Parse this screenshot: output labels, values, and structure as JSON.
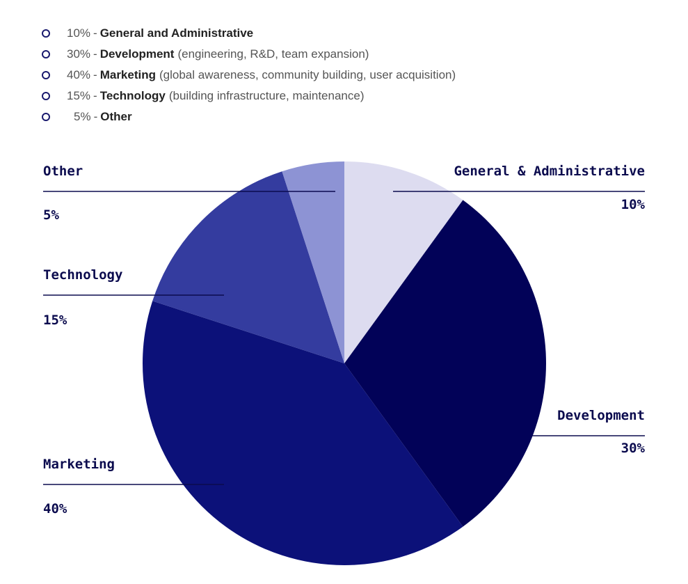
{
  "allocation_list": [
    {
      "percent": "10%",
      "name": "General and Administrative",
      "detail": ""
    },
    {
      "percent": "30%",
      "name": "Development",
      "detail": "(engineering, R&D, team expansion)"
    },
    {
      "percent": "40%",
      "name": "Marketing",
      "detail": "(global awareness, community building, user acquisition)"
    },
    {
      "percent": "15%",
      "name": "Technology",
      "detail": "(building infrastructure, maintenance)"
    },
    {
      "percent": "5%",
      "name": "Other",
      "detail": ""
    }
  ],
  "chart_data": {
    "type": "pie",
    "categories": [
      "General & Administrative",
      "Development",
      "Marketing",
      "Technology",
      "Other"
    ],
    "values": [
      10,
      30,
      40,
      15,
      5
    ],
    "value_labels": [
      "10%",
      "30%",
      "40%",
      "15%",
      "5%"
    ],
    "colors": [
      "#dddcf0",
      "#020258",
      "#0c1179",
      "#343c9f",
      "#8d93d4"
    ],
    "start": "top, clockwise",
    "title": ""
  }
}
